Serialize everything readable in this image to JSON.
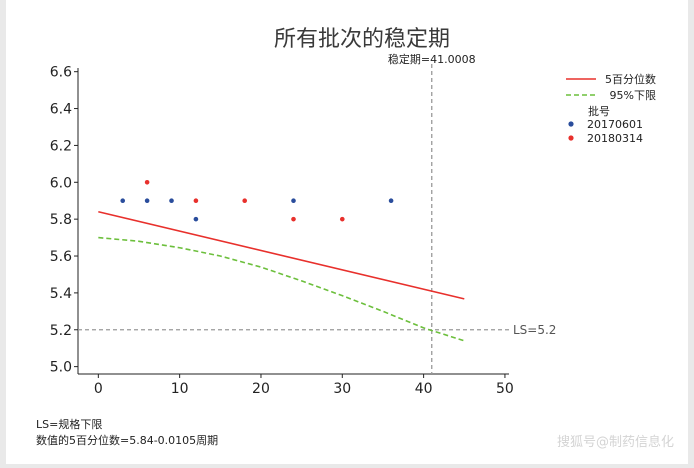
{
  "chart_data": {
    "type": "scatter",
    "title": "所有批次的稳定期",
    "xlabel": "",
    "ylabel": "",
    "xlim": [
      -2.5,
      50.5
    ],
    "ylim": [
      4.96,
      6.62
    ],
    "xticks": [
      "0",
      "10",
      "20",
      "30",
      "40",
      "50"
    ],
    "xtick_values": [
      0,
      10,
      20,
      30,
      40,
      50
    ],
    "yticks": [
      "5.0",
      "5.2",
      "5.4",
      "5.6",
      "5.8",
      "6.0",
      "6.2",
      "6.4",
      "6.6"
    ],
    "ytick_values": [
      5.0,
      5.2,
      5.4,
      5.6,
      5.8,
      6.0,
      6.2,
      6.4,
      6.6
    ],
    "regression_line": {
      "name": "5百分位数",
      "color": "#e8302c",
      "x": [
        0,
        45
      ],
      "y": [
        5.84,
        5.3675
      ]
    },
    "lower_bound": {
      "name": "95%下限",
      "color": "#6cbf3c",
      "x": [
        0,
        5,
        10,
        15,
        20,
        25,
        30,
        35,
        40,
        45
      ],
      "y": [
        5.7,
        5.68,
        5.645,
        5.6,
        5.54,
        5.465,
        5.385,
        5.3,
        5.21,
        5.14
      ]
    },
    "spec_limit": {
      "label": "LS=5.2",
      "value": 5.2
    },
    "stability": {
      "label": "稳定期=41.0008",
      "value": 41.0008
    },
    "legend_title": "批号",
    "series": [
      {
        "name": "20170601",
        "color": "#2a4d9c",
        "x": [
          3,
          6,
          9,
          12,
          24,
          36
        ],
        "y": [
          5.9,
          5.9,
          5.9,
          5.8,
          5.9,
          5.9
        ]
      },
      {
        "name": "20180314",
        "color": "#e8302c",
        "x": [
          6,
          12,
          18,
          24,
          30
        ],
        "y": [
          6.0,
          5.9,
          5.9,
          5.8,
          5.8
        ]
      }
    ]
  },
  "footnotes": {
    "line1": "LS=规格下限",
    "line2": "数值的5百分位数=5.84-0.0105周期"
  },
  "watermark": "搜狐号@制药信息化"
}
